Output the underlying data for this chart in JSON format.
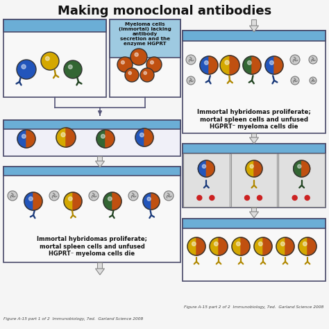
{
  "title": "Making monoclonal antibodies",
  "title_fontsize": 13,
  "title_fontweight": "bold",
  "bg_color": "#f5f5f5",
  "hdr_blue": "#6baed6",
  "hdr_blue2": "#9ecae1",
  "border_dark": "#4a4a6a",
  "cell_blue": "#2255bb",
  "cell_yellow": "#d4a800",
  "cell_green": "#336633",
  "cell_orange": "#c05010",
  "ab_blue": "#1a3a7a",
  "ab_yellow": "#b08800",
  "ab_green": "#224422",
  "dead_fill": "#cccccc",
  "dead_stroke": "#777777",
  "red_dot": "#cc2222",
  "arrow_fill": "#dddddd",
  "arrow_stroke": "#888888",
  "connector_color": "#555577",
  "box_body": "#ffffff",
  "gray_cell_bg": "#e0e0e0",
  "text_dark": "#111111",
  "caption_left": "Figure A-15 part 1 of 2  Immunobiology, 7ed.  Garland Science 2008",
  "caption_right": "Figure A-15 part 2 of 2  Immunobiology, 7ed.  Garland Science 2008",
  "label_myeloma": "Myeloma cells\n(immortal) lacking\nantibody\nsecretion and the\nenzyme HGPRT",
  "label_immortal1": "Immortal hybridomas proliferate;\nmortal spleen cells and unfused\nHGPRT⁻ myeloma cells die",
  "label_immortal2": "Immortal hybridomas proliferate;\nmortal spleen cells and unfused\nHGPRT⁻ myeloma cells die"
}
